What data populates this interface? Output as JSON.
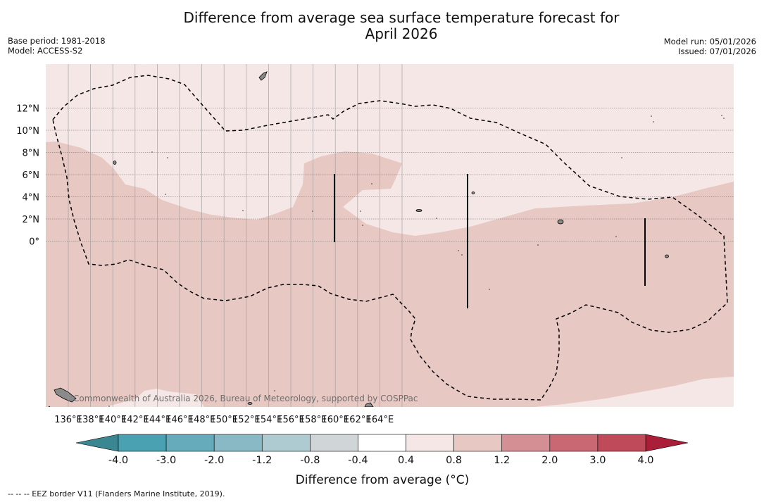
{
  "header": {
    "title_line1": "Difference from average sea surface temperature forecast for",
    "title_line2": "April 2026",
    "base_period": "Base period: 1981-2018",
    "model": "Model: ACCESS-S2",
    "model_run": "Model run: 05/01/2026",
    "issued": "Issued: 07/01/2026"
  },
  "map": {
    "lat_ticks": [
      "12°N",
      "10°N",
      "8°N",
      "6°N",
      "4°N",
      "2°N",
      "0°"
    ],
    "lon_ticks": [
      "136°E",
      "138°E",
      "140°E",
      "142°E",
      "144°E",
      "146°E",
      "148°E",
      "150°E",
      "152°E",
      "154°E",
      "156°E",
      "158°E",
      "160°E",
      "162°E",
      "164°E"
    ],
    "credit": "Commonwealth of Australia 2026, Bureau of Meteorology, supported by COSPPac",
    "colors": {
      "band_0_4_0_8": "#f4e7e5",
      "band_0_8_1_2": "#e7c8c3",
      "land": "#8a8a8a"
    }
  },
  "colorbar": {
    "title": "Difference from average (°C)",
    "labels": [
      "-4.0",
      "-3.0",
      "-2.0",
      "-1.2",
      "-0.8",
      "-0.4",
      "0.4",
      "0.8",
      "1.2",
      "2.0",
      "3.0",
      "4.0"
    ],
    "colors": [
      "#4aa1b2",
      "#65abbc",
      "#88b9c5",
      "#adcbd0",
      "#d0d5d7",
      "#ffffff",
      "#f4e7e5",
      "#e7c8c3",
      "#d48f95",
      "#c96872",
      "#bf4a59"
    ],
    "under_color": "#3b8791",
    "over_color": "#ab1e39"
  },
  "footer": {
    "legend": "--  --  -- EEZ border V11 (Flanders Marine Institute, 2019)."
  }
}
